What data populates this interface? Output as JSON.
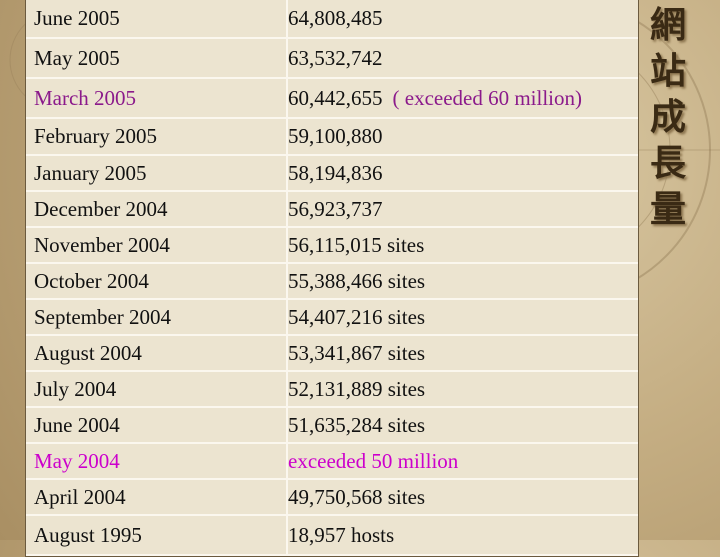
{
  "side_title": "網站成長量",
  "table": {
    "rows": [
      {
        "month": "June 2005",
        "value": "64,808,485"
      },
      {
        "month": "May 2005",
        "value": "63,532,742"
      },
      {
        "month": "March 2005",
        "value": "60,442,655",
        "note": "( exceeded 60 million)",
        "color": "#8b1a8b"
      },
      {
        "month": "February 2005",
        "value": "59,100,880"
      },
      {
        "month": "January 2005",
        "value": "58,194,836"
      },
      {
        "month": "December 2004",
        "value": "56,923,737"
      },
      {
        "month": "November 2004",
        "value": "56,115,015 sites"
      },
      {
        "month": "October 2004",
        "value": "55,388,466 sites"
      },
      {
        "month": "September 2004",
        "value": "54,407,216 sites"
      },
      {
        "month": "August 2004",
        "value": "53,341,867 sites"
      },
      {
        "month": "July 2004",
        "value": "52,131,889 sites"
      },
      {
        "month": "June 2004",
        "value": "51,635,284 sites"
      },
      {
        "month": "May 2004",
        "value": "exceeded 50 million",
        "color": "#cc00cc"
      },
      {
        "month": "April 2004",
        "value": "49,750,568 sites"
      },
      {
        "month": "August 1995",
        "value": "18,957 hosts"
      }
    ]
  }
}
